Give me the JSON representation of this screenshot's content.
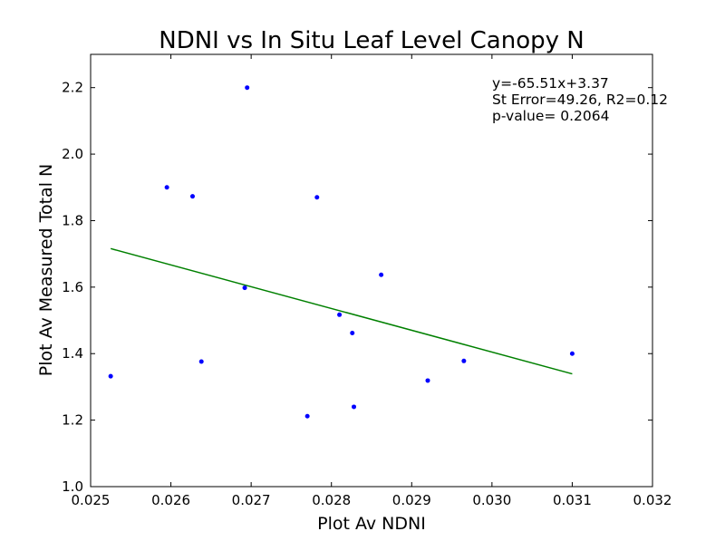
{
  "chart_data": {
    "type": "scatter",
    "title": "NDNI vs In Situ Leaf Level Canopy N",
    "xlabel": "Plot Av NDNI",
    "ylabel": "Plot Av Measured Total N",
    "xlim": [
      0.025,
      0.032
    ],
    "ylim": [
      1.0,
      2.3
    ],
    "x_ticks": [
      0.025,
      0.026,
      0.027,
      0.028,
      0.029,
      0.03,
      0.031,
      0.032
    ],
    "x_tick_labels": [
      "0.025",
      "0.026",
      "0.027",
      "0.028",
      "0.029",
      "0.030",
      "0.031",
      "0.032"
    ],
    "y_ticks": [
      1.0,
      1.2,
      1.4,
      1.6,
      1.8,
      2.0,
      2.2
    ],
    "y_tick_labels": [
      "1.0",
      "1.2",
      "1.4",
      "1.6",
      "1.8",
      "2.0",
      "2.2"
    ],
    "grid": false,
    "colors": {
      "points": "#0000ff",
      "fit_line": "#008000",
      "frame": "#000000"
    },
    "series": [
      {
        "points": [
          {
            "x": 0.02525,
            "y": 1.332
          },
          {
            "x": 0.02595,
            "y": 1.9
          },
          {
            "x": 0.02627,
            "y": 1.873
          },
          {
            "x": 0.02638,
            "y": 1.376
          },
          {
            "x": 0.02692,
            "y": 1.598
          },
          {
            "x": 0.02695,
            "y": 2.2
          },
          {
            "x": 0.0277,
            "y": 1.212
          },
          {
            "x": 0.02782,
            "y": 1.87
          },
          {
            "x": 0.0281,
            "y": 1.517
          },
          {
            "x": 0.02826,
            "y": 1.462
          },
          {
            "x": 0.02828,
            "y": 1.24
          },
          {
            "x": 0.02862,
            "y": 1.637
          },
          {
            "x": 0.0292,
            "y": 1.319
          },
          {
            "x": 0.02965,
            "y": 1.378
          },
          {
            "x": 0.031,
            "y": 1.4
          }
        ]
      }
    ],
    "fit_line": {
      "slope": -65.51,
      "intercept": 3.37,
      "x_start": 0.02525,
      "x_end": 0.031
    },
    "annotations": [
      "y=-65.51x+3.37",
      "St Error=49.26, R2=0.12",
      "p-value= 0.2064"
    ]
  }
}
